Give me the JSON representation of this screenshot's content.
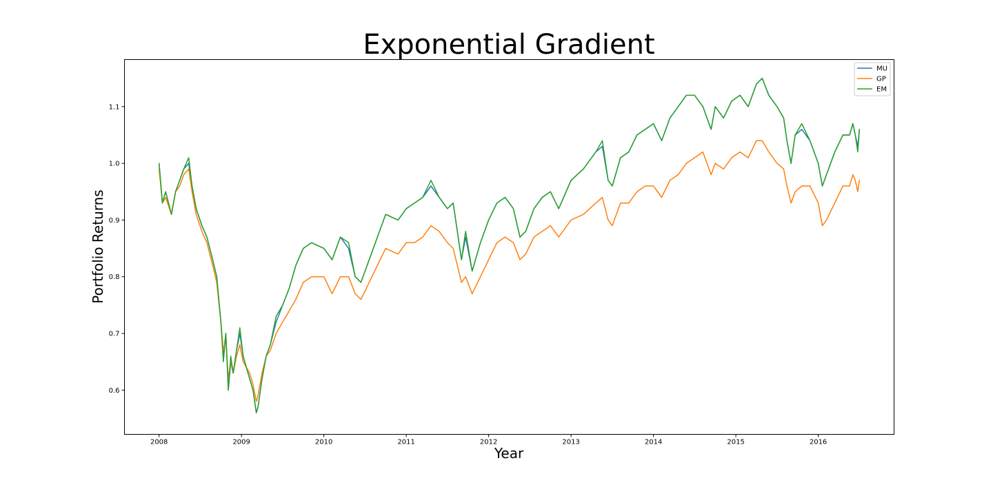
{
  "chart_data": {
    "type": "line",
    "title": "Exponential Gradient",
    "xlabel": "Year",
    "ylabel": "Portfolio Returns",
    "xlim": [
      2007.58,
      2016.92
    ],
    "ylim": [
      0.522,
      1.183
    ],
    "xticks": [
      2008,
      2009,
      2010,
      2011,
      2012,
      2013,
      2014,
      2015,
      2016
    ],
    "xtick_labels": [
      "2008",
      "2009",
      "2010",
      "2011",
      "2012",
      "2013",
      "2014",
      "2015",
      "2016"
    ],
    "yticks": [
      0.6,
      0.7,
      0.8,
      0.9,
      1.0,
      1.1
    ],
    "ytick_labels": [
      "0.6",
      "0.7",
      "0.8",
      "0.9",
      "1.0",
      "1.1"
    ],
    "grid": false,
    "legend_position": "top-right",
    "series": [
      {
        "name": "MU",
        "color": "#1f77b4",
        "x": [
          2008.0,
          2008.04,
          2008.08,
          2008.15,
          2008.2,
          2008.25,
          2008.3,
          2008.36,
          2008.4,
          2008.45,
          2008.52,
          2008.58,
          2008.65,
          2008.7,
          2008.75,
          2008.78,
          2008.81,
          2008.84,
          2008.87,
          2008.9,
          2008.94,
          2008.98,
          2009.02,
          2009.06,
          2009.1,
          2009.14,
          2009.18,
          2009.2,
          2009.25,
          2009.3,
          2009.35,
          2009.42,
          2009.5,
          2009.58,
          2009.66,
          2009.75,
          2009.85,
          2010.0,
          2010.1,
          2010.2,
          2010.3,
          2010.38,
          2010.45,
          2010.55,
          2010.65,
          2010.75,
          2010.9,
          2011.0,
          2011.1,
          2011.2,
          2011.3,
          2011.4,
          2011.5,
          2011.57,
          2011.62,
          2011.67,
          2011.72,
          2011.8,
          2011.9,
          2012.0,
          2012.1,
          2012.2,
          2012.3,
          2012.38,
          2012.45,
          2012.55,
          2012.65,
          2012.75,
          2012.85,
          2013.0,
          2013.15,
          2013.3,
          2013.38,
          2013.45,
          2013.5,
          2013.6,
          2013.7,
          2013.8,
          2013.9,
          2014.0,
          2014.1,
          2014.2,
          2014.3,
          2014.4,
          2014.5,
          2014.6,
          2014.7,
          2014.75,
          2014.85,
          2014.95,
          2015.05,
          2015.15,
          2015.25,
          2015.32,
          2015.4,
          2015.5,
          2015.58,
          2015.62,
          2015.67,
          2015.72,
          2015.8,
          2015.9,
          2016.0,
          2016.05,
          2016.1,
          2016.2,
          2016.3,
          2016.38,
          2016.42,
          2016.45,
          2016.48,
          2016.5
        ],
        "values": [
          1.0,
          0.93,
          0.95,
          0.91,
          0.95,
          0.97,
          0.99,
          1.0,
          0.96,
          0.92,
          0.89,
          0.87,
          0.83,
          0.8,
          0.72,
          0.66,
          0.7,
          0.6,
          0.65,
          0.63,
          0.67,
          0.7,
          0.66,
          0.64,
          0.62,
          0.6,
          0.56,
          0.57,
          0.62,
          0.66,
          0.68,
          0.72,
          0.75,
          0.78,
          0.82,
          0.85,
          0.86,
          0.85,
          0.83,
          0.87,
          0.85,
          0.8,
          0.79,
          0.83,
          0.87,
          0.91,
          0.9,
          0.92,
          0.93,
          0.94,
          0.96,
          0.94,
          0.92,
          0.93,
          0.88,
          0.83,
          0.87,
          0.81,
          0.86,
          0.9,
          0.93,
          0.94,
          0.92,
          0.87,
          0.88,
          0.92,
          0.94,
          0.95,
          0.92,
          0.97,
          0.99,
          1.02,
          1.03,
          0.97,
          0.96,
          1.01,
          1.02,
          1.05,
          1.06,
          1.07,
          1.04,
          1.08,
          1.1,
          1.12,
          1.12,
          1.1,
          1.06,
          1.1,
          1.08,
          1.11,
          1.12,
          1.1,
          1.14,
          1.15,
          1.12,
          1.1,
          1.08,
          1.04,
          1.0,
          1.05,
          1.06,
          1.04,
          1.0,
          0.96,
          0.98,
          1.02,
          1.05,
          1.05,
          1.07,
          1.05,
          1.03,
          1.06
        ]
      },
      {
        "name": "GP",
        "color": "#ff7f0e",
        "x": [
          2008.0,
          2008.04,
          2008.08,
          2008.15,
          2008.2,
          2008.25,
          2008.3,
          2008.36,
          2008.4,
          2008.45,
          2008.52,
          2008.58,
          2008.65,
          2008.7,
          2008.75,
          2008.78,
          2008.81,
          2008.84,
          2008.87,
          2008.9,
          2008.94,
          2008.98,
          2009.02,
          2009.06,
          2009.1,
          2009.14,
          2009.18,
          2009.2,
          2009.25,
          2009.3,
          2009.35,
          2009.42,
          2009.5,
          2009.58,
          2009.66,
          2009.75,
          2009.85,
          2010.0,
          2010.1,
          2010.2,
          2010.3,
          2010.38,
          2010.45,
          2010.55,
          2010.65,
          2010.75,
          2010.9,
          2011.0,
          2011.1,
          2011.2,
          2011.3,
          2011.4,
          2011.5,
          2011.57,
          2011.62,
          2011.67,
          2011.72,
          2011.8,
          2011.9,
          2012.0,
          2012.1,
          2012.2,
          2012.3,
          2012.38,
          2012.45,
          2012.55,
          2012.65,
          2012.75,
          2012.85,
          2013.0,
          2013.15,
          2013.3,
          2013.38,
          2013.45,
          2013.5,
          2013.6,
          2013.7,
          2013.8,
          2013.9,
          2014.0,
          2014.1,
          2014.2,
          2014.3,
          2014.4,
          2014.5,
          2014.6,
          2014.7,
          2014.75,
          2014.85,
          2014.95,
          2015.05,
          2015.15,
          2015.25,
          2015.32,
          2015.4,
          2015.5,
          2015.58,
          2015.62,
          2015.67,
          2015.72,
          2015.8,
          2015.9,
          2016.0,
          2016.05,
          2016.1,
          2016.2,
          2016.3,
          2016.38,
          2016.42,
          2016.45,
          2016.48,
          2016.5
        ],
        "values": [
          0.99,
          0.93,
          0.94,
          0.91,
          0.95,
          0.96,
          0.98,
          0.99,
          0.95,
          0.91,
          0.88,
          0.86,
          0.82,
          0.79,
          0.72,
          0.67,
          0.69,
          0.62,
          0.65,
          0.63,
          0.66,
          0.68,
          0.65,
          0.64,
          0.63,
          0.61,
          0.58,
          0.59,
          0.63,
          0.66,
          0.67,
          0.7,
          0.72,
          0.74,
          0.76,
          0.79,
          0.8,
          0.8,
          0.77,
          0.8,
          0.8,
          0.77,
          0.76,
          0.79,
          0.82,
          0.85,
          0.84,
          0.86,
          0.86,
          0.87,
          0.89,
          0.88,
          0.86,
          0.85,
          0.82,
          0.79,
          0.8,
          0.77,
          0.8,
          0.83,
          0.86,
          0.87,
          0.86,
          0.83,
          0.84,
          0.87,
          0.88,
          0.89,
          0.87,
          0.9,
          0.91,
          0.93,
          0.94,
          0.9,
          0.89,
          0.93,
          0.93,
          0.95,
          0.96,
          0.96,
          0.94,
          0.97,
          0.98,
          1.0,
          1.01,
          1.02,
          0.98,
          1.0,
          0.99,
          1.01,
          1.02,
          1.01,
          1.04,
          1.04,
          1.02,
          1.0,
          0.99,
          0.96,
          0.93,
          0.95,
          0.96,
          0.96,
          0.93,
          0.89,
          0.9,
          0.93,
          0.96,
          0.96,
          0.98,
          0.97,
          0.95,
          0.97
        ]
      },
      {
        "name": "EM",
        "color": "#2ca02c",
        "x": [
          2008.0,
          2008.04,
          2008.08,
          2008.15,
          2008.2,
          2008.25,
          2008.3,
          2008.36,
          2008.4,
          2008.45,
          2008.52,
          2008.58,
          2008.65,
          2008.7,
          2008.75,
          2008.78,
          2008.81,
          2008.84,
          2008.87,
          2008.9,
          2008.94,
          2008.98,
          2009.02,
          2009.06,
          2009.1,
          2009.14,
          2009.18,
          2009.2,
          2009.25,
          2009.3,
          2009.35,
          2009.42,
          2009.5,
          2009.58,
          2009.66,
          2009.75,
          2009.85,
          2010.0,
          2010.1,
          2010.2,
          2010.3,
          2010.38,
          2010.45,
          2010.55,
          2010.65,
          2010.75,
          2010.9,
          2011.0,
          2011.1,
          2011.2,
          2011.3,
          2011.4,
          2011.5,
          2011.57,
          2011.62,
          2011.67,
          2011.72,
          2011.8,
          2011.9,
          2012.0,
          2012.1,
          2012.2,
          2012.3,
          2012.38,
          2012.45,
          2012.55,
          2012.65,
          2012.75,
          2012.85,
          2013.0,
          2013.15,
          2013.3,
          2013.38,
          2013.45,
          2013.5,
          2013.6,
          2013.7,
          2013.8,
          2013.9,
          2014.0,
          2014.1,
          2014.2,
          2014.3,
          2014.4,
          2014.5,
          2014.6,
          2014.7,
          2014.75,
          2014.85,
          2014.95,
          2015.05,
          2015.15,
          2015.25,
          2015.32,
          2015.4,
          2015.5,
          2015.58,
          2015.62,
          2015.67,
          2015.72,
          2015.8,
          2015.9,
          2016.0,
          2016.05,
          2016.1,
          2016.2,
          2016.3,
          2016.38,
          2016.42,
          2016.45,
          2016.48,
          2016.5
        ],
        "values": [
          1.0,
          0.93,
          0.95,
          0.91,
          0.95,
          0.97,
          0.99,
          1.01,
          0.96,
          0.92,
          0.89,
          0.87,
          0.83,
          0.8,
          0.72,
          0.65,
          0.7,
          0.6,
          0.66,
          0.63,
          0.67,
          0.71,
          0.66,
          0.64,
          0.62,
          0.6,
          0.56,
          0.57,
          0.62,
          0.66,
          0.68,
          0.73,
          0.75,
          0.78,
          0.82,
          0.85,
          0.86,
          0.85,
          0.83,
          0.87,
          0.86,
          0.8,
          0.79,
          0.83,
          0.87,
          0.91,
          0.9,
          0.92,
          0.93,
          0.94,
          0.97,
          0.94,
          0.92,
          0.93,
          0.88,
          0.83,
          0.88,
          0.81,
          0.86,
          0.9,
          0.93,
          0.94,
          0.92,
          0.87,
          0.88,
          0.92,
          0.94,
          0.95,
          0.92,
          0.97,
          0.99,
          1.02,
          1.04,
          0.97,
          0.96,
          1.01,
          1.02,
          1.05,
          1.06,
          1.07,
          1.04,
          1.08,
          1.1,
          1.12,
          1.12,
          1.1,
          1.06,
          1.1,
          1.08,
          1.11,
          1.12,
          1.1,
          1.14,
          1.15,
          1.12,
          1.1,
          1.08,
          1.04,
          1.0,
          1.05,
          1.07,
          1.04,
          1.0,
          0.96,
          0.98,
          1.02,
          1.05,
          1.05,
          1.07,
          1.05,
          1.02,
          1.06
        ]
      }
    ]
  }
}
